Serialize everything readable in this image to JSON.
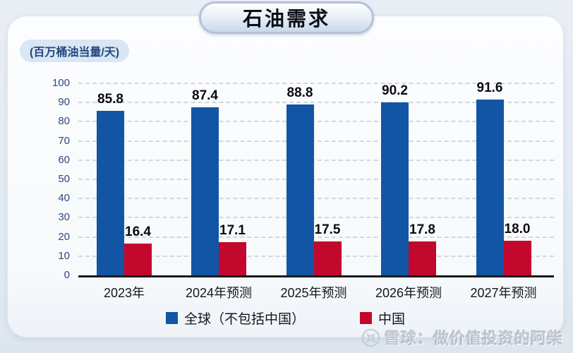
{
  "page": {
    "title": "石油需求",
    "unit_label": "(百万桶油当量/天)",
    "watermark": {
      "brand": "雪球：做价值投资的阿柴",
      "icon": "xueqiu-logo"
    }
  },
  "colors": {
    "page_bg": "#e7edf3",
    "card_bg": "#fafcfe",
    "title_pill_border": "#b6c2dc",
    "grid": "#ccd8e4",
    "baseline": "#191920",
    "axis_text": "#2c4a7c",
    "global_series": "#1355a5",
    "china_series": "#c2082c"
  },
  "chart_data": {
    "type": "bar",
    "title": "石油需求",
    "ylabel": "百万桶油当量/天",
    "categories": [
      "2023年",
      "2024年预测",
      "2025年预测",
      "2026年预测",
      "2027年预测"
    ],
    "series": [
      {
        "name": "全球（不包括中国）",
        "color": "#1355a5",
        "values": [
          85.8,
          87.4,
          88.8,
          90.2,
          91.6
        ]
      },
      {
        "name": "中国",
        "color": "#c2082c",
        "values": [
          16.4,
          17.1,
          17.5,
          17.8,
          18.0
        ]
      }
    ],
    "ylim": [
      0,
      100
    ],
    "ytick_step": 10,
    "grid": "dashed-horizontal",
    "legend_position": "bottom",
    "value_labels": true
  }
}
